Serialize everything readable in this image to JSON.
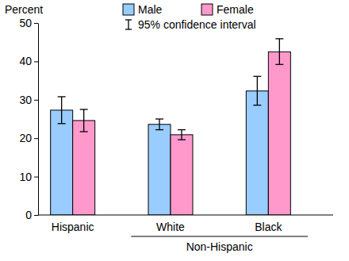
{
  "chart_data": {
    "type": "bar",
    "y_label": "Percent",
    "categories": [
      "Hispanic",
      "White",
      "Black"
    ],
    "category_groups": [
      {
        "label": "Non-Hispanic",
        "members": [
          "White",
          "Black"
        ]
      }
    ],
    "series": [
      {
        "name": "Male",
        "color": "#99ccff",
        "values": [
          27.3,
          23.6,
          32.3
        ],
        "ci_lower": [
          23.8,
          22.2,
          28.6
        ],
        "ci_upper": [
          30.8,
          25.0,
          36.1
        ]
      },
      {
        "name": "Female",
        "color": "#ff99cc",
        "values": [
          24.6,
          20.9,
          42.5
        ],
        "ci_lower": [
          21.7,
          19.6,
          39.2
        ],
        "ci_upper": [
          27.5,
          22.2,
          45.9
        ]
      }
    ],
    "error_bar_label": "95% confidence interval",
    "ylim": [
      0,
      50
    ],
    "yticks": [
      0,
      10,
      20,
      30,
      40,
      50
    ],
    "legend": "top",
    "grid": false
  }
}
